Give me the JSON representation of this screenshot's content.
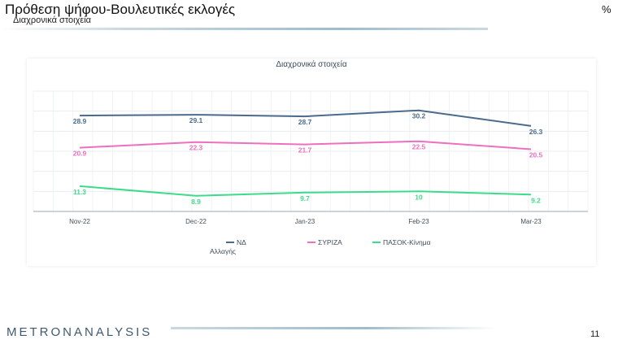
{
  "header": {
    "title": "Πρόθεση ψήφου-Βουλευτικές εκλογές",
    "subtitle": "Διαχρονικά στοιχεία",
    "unit": "%"
  },
  "footer": {
    "logo_left": "METRON",
    "logo_right": "ANALYSIS",
    "page_number": "11"
  },
  "chart_data": {
    "type": "line",
    "title": "Διαχρονικά στοιχεία",
    "categories": [
      "Nov-22",
      "Dec-22",
      "Jan-23",
      "Feb-23",
      "Mar-23"
    ],
    "series": [
      {
        "name": "ΝΔ",
        "values": [
          28.9,
          29.1,
          28.7,
          30.2,
          26.3
        ],
        "labels": [
          "28.9",
          "29.1",
          "28.7",
          "30.2",
          "26.3"
        ],
        "color": "#4a6b8c"
      },
      {
        "name": "ΣΥΡΙΖΑ",
        "values": [
          20.9,
          22.3,
          21.7,
          22.5,
          20.5
        ],
        "labels": [
          "20.9",
          "22.3",
          "21.7",
          "22.5",
          "20.5"
        ],
        "color": "#ee6fc0"
      },
      {
        "name": "ΠΑΣΟΚ-Κίνημα",
        "values": [
          11.3,
          8.9,
          9.7,
          10,
          9.2
        ],
        "labels": [
          "11.3",
          "8.9",
          "9.7",
          "10",
          "9.2"
        ],
        "color": "#3ddc8a"
      }
    ],
    "legend_extra": "Αλλαγής",
    "legend_position": "bottom-left",
    "grid": true,
    "ylim": [
      5,
      35
    ]
  }
}
